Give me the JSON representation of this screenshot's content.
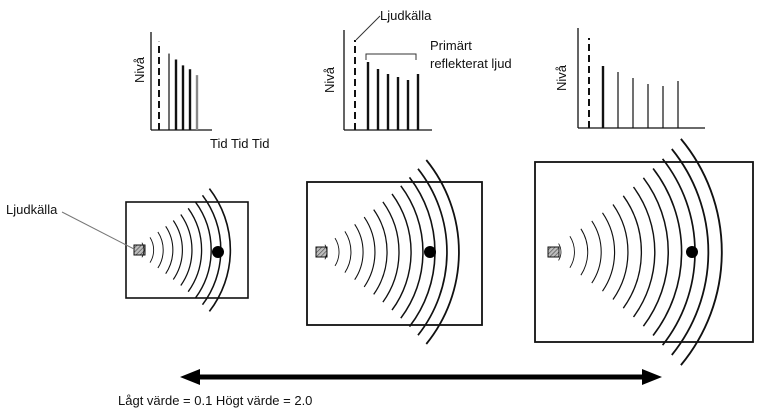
{
  "labels": {
    "source_top": "Ljudkälla",
    "primary_reflected": [
      "Primärt",
      "reflekterat ljud"
    ],
    "source_left": "Ljudkälla",
    "time_axis": "Tid Tid Tid",
    "y_axis": [
      "Nivå",
      "Nivå",
      "Nivå"
    ],
    "scale": "Lågt värde = 0.1 Högt värde = 2.0"
  },
  "level_charts": [
    {
      "name": "small-room",
      "direct_level": 0.9,
      "reflection_levels": [
        0.78,
        0.72,
        0.66,
        0.62,
        0.56
      ]
    },
    {
      "name": "medium-room",
      "direct_level": 0.9,
      "reflection_levels": [
        0.68,
        0.61,
        0.56,
        0.53,
        0.5,
        0.56
      ]
    },
    {
      "name": "large-room",
      "direct_level": 0.9,
      "reflection_levels": [
        0.62,
        0.56,
        0.5,
        0.44,
        0.42,
        0.47
      ]
    }
  ],
  "rooms": [
    {
      "name": "small-room",
      "wave_count": 10
    },
    {
      "name": "medium-room",
      "wave_count": 12
    },
    {
      "name": "large-room",
      "wave_count": 13
    }
  ],
  "colors": {
    "ink": "#111111",
    "gray_line": "#888888",
    "source_fill": "#9a9a9a"
  }
}
